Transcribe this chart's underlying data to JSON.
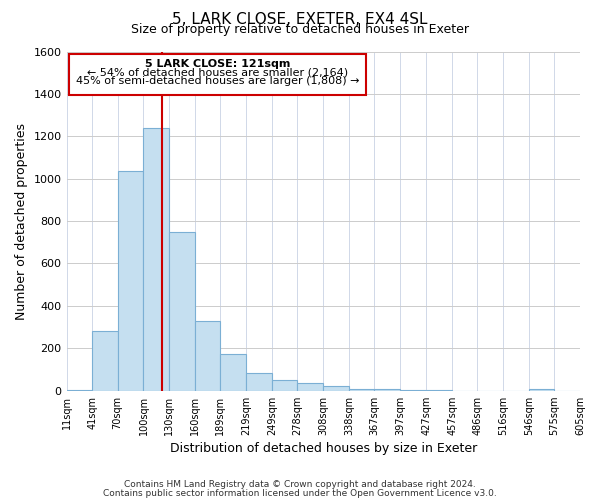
{
  "title": "5, LARK CLOSE, EXETER, EX4 4SL",
  "subtitle": "Size of property relative to detached houses in Exeter",
  "xlabel": "Distribution of detached houses by size in Exeter",
  "ylabel": "Number of detached properties",
  "bar_color": "#c5dff0",
  "bar_edge_color": "#7bafd4",
  "vline_x": 121,
  "vline_color": "#cc0000",
  "bin_edges": [
    11,
    41,
    70,
    100,
    130,
    160,
    189,
    219,
    249,
    278,
    308,
    338,
    367,
    397,
    427,
    457,
    486,
    516,
    546,
    575,
    605
  ],
  "bin_labels": [
    "11sqm",
    "41sqm",
    "70sqm",
    "100sqm",
    "130sqm",
    "160sqm",
    "189sqm",
    "219sqm",
    "249sqm",
    "278sqm",
    "308sqm",
    "338sqm",
    "367sqm",
    "397sqm",
    "427sqm",
    "457sqm",
    "486sqm",
    "516sqm",
    "546sqm",
    "575sqm",
    "605sqm"
  ],
  "values": [
    5,
    280,
    1035,
    1240,
    750,
    330,
    175,
    85,
    50,
    35,
    20,
    10,
    10,
    5,
    5,
    0,
    0,
    0,
    10,
    0
  ],
  "ylim": [
    0,
    1600
  ],
  "yticks": [
    0,
    200,
    400,
    600,
    800,
    1000,
    1200,
    1400,
    1600
  ],
  "annotation_title": "5 LARK CLOSE: 121sqm",
  "annotation_line1": "← 54% of detached houses are smaller (2,164)",
  "annotation_line2": "45% of semi-detached houses are larger (1,808) →",
  "annotation_box_facecolor": "#ffffff",
  "annotation_box_edge": "#cc0000",
  "footer1": "Contains HM Land Registry data © Crown copyright and database right 2024.",
  "footer2": "Contains public sector information licensed under the Open Government Licence v3.0.",
  "background_color": "#ffffff",
  "grid_color": "#cccccc",
  "grid_color_x": "#d0d8e8"
}
